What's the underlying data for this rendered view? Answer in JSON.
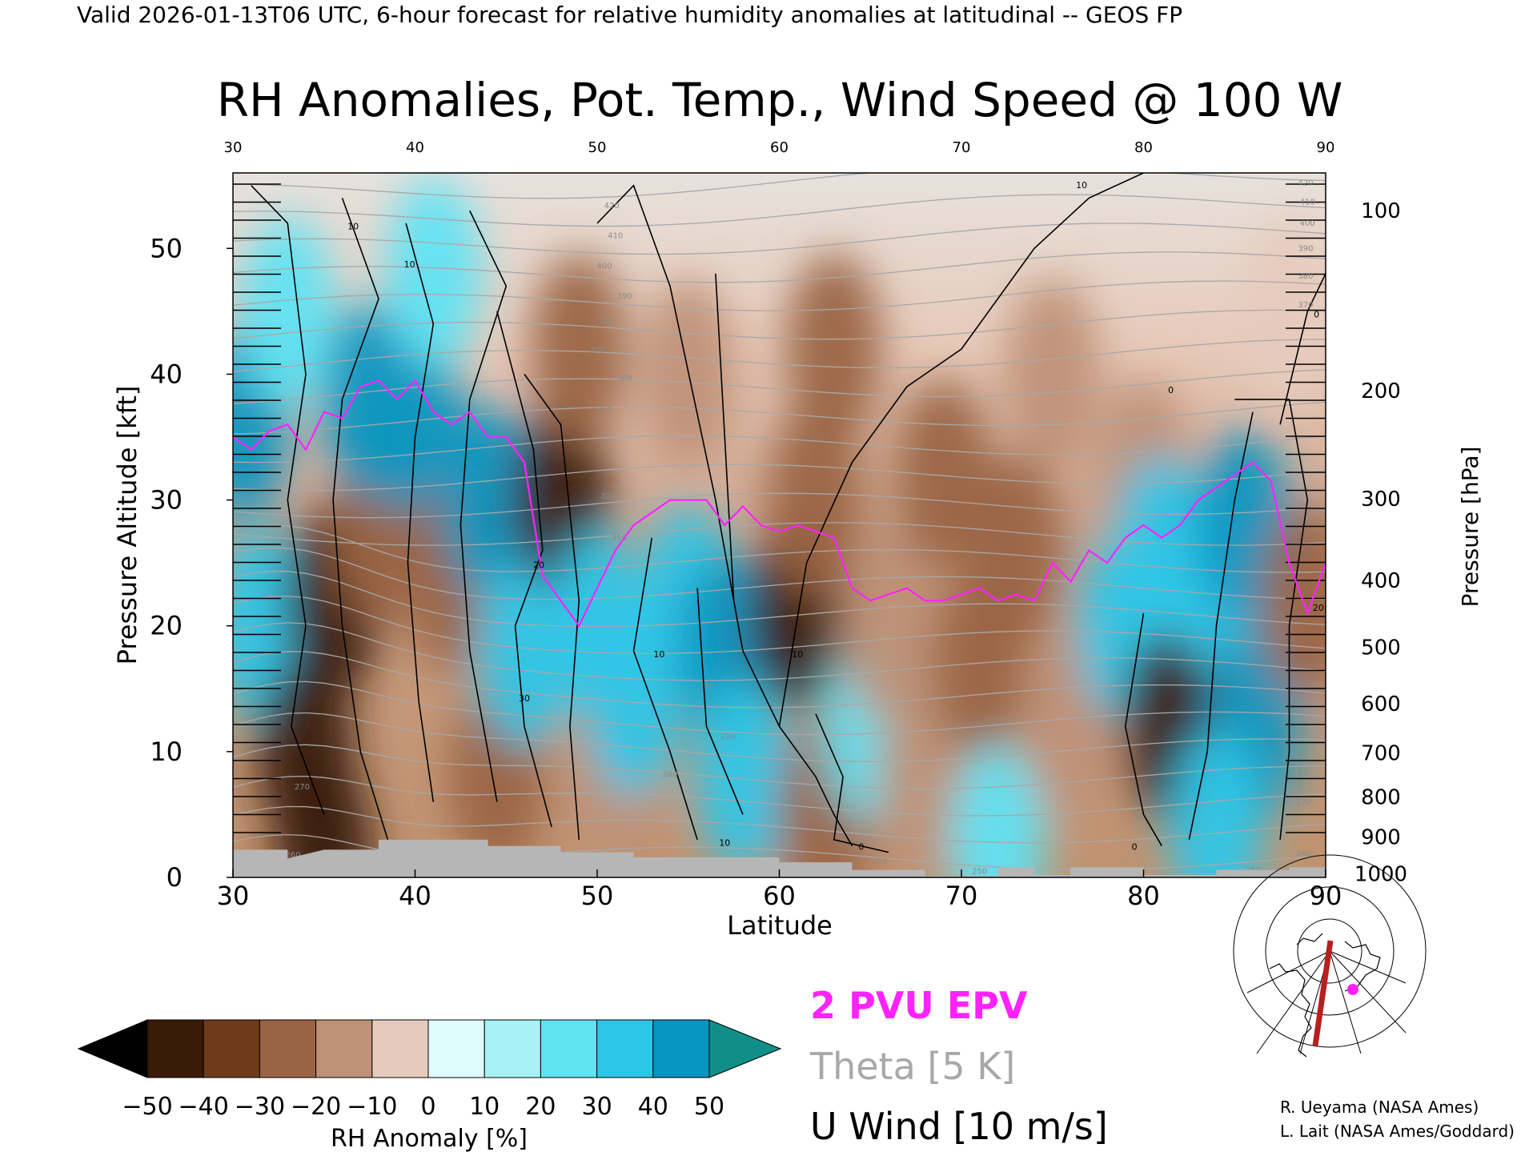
{
  "header": {
    "valid_line": "Valid 2026-01-13T06 UTC, 6-hour forecast for relative humidity anomalies at latitudinal -- GEOS FP",
    "title": "RH Anomalies, Pot. Temp., Wind Speed @ 100 W"
  },
  "legend": {
    "epv_label": "2 PVU EPV",
    "theta_label": "Theta [5 K]",
    "wind_label": "U Wind [10 m/s]",
    "colors": {
      "epv": "#ff22ff",
      "theta": "#a8a8a8",
      "wind": "#000000"
    }
  },
  "colorbar": {
    "label": "RH Anomaly [%]",
    "ticks": [
      "−50",
      "−40",
      "−30",
      "−20",
      "−10",
      "0",
      "10",
      "20",
      "30",
      "40",
      "50"
    ],
    "colors": [
      "#000000",
      "#3a1a08",
      "#6e3a1a",
      "#9a6444",
      "#bf9177",
      "#e6cbbd",
      "#e0fbfb",
      "#a8f2f7",
      "#5fe3f3",
      "#2ec6e8",
      "#0896c0",
      "#118e88"
    ]
  },
  "credits": {
    "line1": "R. Ueyama (NASA Ames)",
    "line2": "L. Lait (NASA Ames/Goddard)"
  },
  "chart_data": {
    "type": "heatmap",
    "xlabel": "Latitude",
    "ylabel": "Pressure Altitude [kft]",
    "y2label": "Pressure [hPa]",
    "xlim": [
      30,
      90
    ],
    "ylim": [
      0,
      56
    ],
    "x_ticks": [
      "30",
      "40",
      "50",
      "60",
      "70",
      "80",
      "90"
    ],
    "y_ticks": [
      "0",
      "10",
      "20",
      "30",
      "40",
      "50"
    ],
    "top_ticks": [
      "30",
      "40",
      "50",
      "60",
      "70",
      "80",
      "90"
    ],
    "pressure_ticks": [
      {
        "label": "100",
        "kft": 53
      },
      {
        "label": "200",
        "kft": 38.7
      },
      {
        "label": "300",
        "kft": 30.1
      },
      {
        "label": "400",
        "kft": 23.6
      },
      {
        "label": "500",
        "kft": 18.3
      },
      {
        "label": "600",
        "kft": 13.8
      },
      {
        "label": "700",
        "kft": 9.9
      },
      {
        "label": "800",
        "kft": 6.4
      },
      {
        "label": "900",
        "kft": 3.2
      },
      {
        "label": "1000",
        "kft": 0.3
      }
    ],
    "rh_anomaly_regions": [
      {
        "lat": 30.5,
        "kft": 36,
        "value": 45
      },
      {
        "lat": 31.5,
        "kft": 20,
        "value": 35
      },
      {
        "lat": 33,
        "kft": 45,
        "value": 20
      },
      {
        "lat": 34,
        "kft": 10,
        "value": -48
      },
      {
        "lat": 35.5,
        "kft": 22,
        "value": -42
      },
      {
        "lat": 35,
        "kft": 2,
        "value": -50
      },
      {
        "lat": 38,
        "kft": 28,
        "value": -28
      },
      {
        "lat": 37.5,
        "kft": 38,
        "value": 46
      },
      {
        "lat": 40,
        "kft": 36,
        "value": 45
      },
      {
        "lat": 42,
        "kft": 24,
        "value": -25
      },
      {
        "lat": 41,
        "kft": 48,
        "value": 25
      },
      {
        "lat": 44,
        "kft": 30,
        "value": 40
      },
      {
        "lat": 44.5,
        "kft": 8,
        "value": -22
      },
      {
        "lat": 46,
        "kft": 18,
        "value": 35
      },
      {
        "lat": 48,
        "kft": 30,
        "value": -45
      },
      {
        "lat": 49,
        "kft": 42,
        "value": -30
      },
      {
        "lat": 50,
        "kft": 20,
        "value": 30
      },
      {
        "lat": 51,
        "kft": 8,
        "value": -15
      },
      {
        "lat": 52,
        "kft": 14,
        "value": 35
      },
      {
        "lat": 55,
        "kft": 40,
        "value": -20
      },
      {
        "lat": 55,
        "kft": 22,
        "value": 30
      },
      {
        "lat": 57,
        "kft": 18,
        "value": 40
      },
      {
        "lat": 58,
        "kft": 8,
        "value": 32
      },
      {
        "lat": 61,
        "kft": 21,
        "value": -48
      },
      {
        "lat": 62,
        "kft": 30,
        "value": -28
      },
      {
        "lat": 62.5,
        "kft": 5,
        "value": -25
      },
      {
        "lat": 63,
        "kft": 42,
        "value": -22
      },
      {
        "lat": 65,
        "kft": 12,
        "value": 25
      },
      {
        "lat": 66,
        "kft": 20,
        "value": -18
      },
      {
        "lat": 68,
        "kft": 8,
        "value": -15
      },
      {
        "lat": 69,
        "kft": 32,
        "value": -30
      },
      {
        "lat": 71,
        "kft": 17,
        "value": -25
      },
      {
        "lat": 72,
        "kft": 3,
        "value": 28
      },
      {
        "lat": 73,
        "kft": 26,
        "value": -22
      },
      {
        "lat": 75,
        "kft": 40,
        "value": -18
      },
      {
        "lat": 76,
        "kft": 12,
        "value": -12
      },
      {
        "lat": 79,
        "kft": 20,
        "value": 35
      },
      {
        "lat": 80,
        "kft": 32,
        "value": -15
      },
      {
        "lat": 81,
        "kft": 26,
        "value": 30
      },
      {
        "lat": 81.5,
        "kft": 12,
        "value": -48
      },
      {
        "lat": 84,
        "kft": 24,
        "value": 30
      },
      {
        "lat": 85.5,
        "kft": 28,
        "value": 46
      },
      {
        "lat": 86,
        "kft": 12,
        "value": 42
      },
      {
        "lat": 84,
        "kft": 4,
        "value": 30
      },
      {
        "lat": 89,
        "kft": 22,
        "value": -22
      },
      {
        "lat": 88,
        "kft": 45,
        "value": -10
      }
    ],
    "epv_2pvu_line": [
      [
        30,
        35
      ],
      [
        31,
        34
      ],
      [
        32,
        35.5
      ],
      [
        33,
        36
      ],
      [
        34,
        34
      ],
      [
        35,
        37
      ],
      [
        36,
        36.5
      ],
      [
        37,
        39
      ],
      [
        38,
        39.5
      ],
      [
        39,
        38
      ],
      [
        40,
        39.5
      ],
      [
        41,
        37
      ],
      [
        42,
        36
      ],
      [
        43,
        37
      ],
      [
        44,
        35
      ],
      [
        45,
        35
      ],
      [
        46,
        33
      ],
      [
        47,
        24
      ],
      [
        48,
        22
      ],
      [
        49,
        20
      ],
      [
        50,
        23
      ],
      [
        51,
        26
      ],
      [
        52,
        28
      ],
      [
        53,
        29
      ],
      [
        54,
        30
      ],
      [
        55,
        30
      ],
      [
        56,
        30
      ],
      [
        57,
        28
      ],
      [
        58,
        29.5
      ],
      [
        59,
        28
      ],
      [
        60,
        27.5
      ],
      [
        61,
        28
      ],
      [
        62,
        27.5
      ],
      [
        63,
        27
      ],
      [
        64,
        23
      ],
      [
        65,
        22
      ],
      [
        66,
        22.5
      ],
      [
        67,
        23
      ],
      [
        68,
        22
      ],
      [
        69,
        22
      ],
      [
        70,
        22.5
      ],
      [
        71,
        23
      ],
      [
        72,
        22
      ],
      [
        73,
        22.5
      ],
      [
        74,
        22
      ],
      [
        75,
        25
      ],
      [
        76,
        23.5
      ],
      [
        77,
        26
      ],
      [
        78,
        25
      ],
      [
        79,
        27
      ],
      [
        80,
        28
      ],
      [
        81,
        27
      ],
      [
        82,
        28
      ],
      [
        83,
        30
      ],
      [
        84,
        31
      ],
      [
        85,
        32
      ],
      [
        86,
        33
      ],
      [
        87,
        31.5
      ],
      [
        88,
        25
      ],
      [
        89,
        21
      ],
      [
        90,
        25
      ]
    ],
    "theta_labels": [
      {
        "text": "420",
        "lat": 50.8,
        "kft": 53.2
      },
      {
        "text": "410",
        "lat": 51.0,
        "kft": 50.8
      },
      {
        "text": "400",
        "lat": 50.4,
        "kft": 48.4
      },
      {
        "text": "390",
        "lat": 51.5,
        "kft": 46.0
      },
      {
        "text": "380",
        "lat": 50.5,
        "kft": 44.0
      },
      {
        "text": "370",
        "lat": 50.0,
        "kft": 41.7
      },
      {
        "text": "360",
        "lat": 51.5,
        "kft": 39.5
      },
      {
        "text": "350",
        "lat": 50.4,
        "kft": 37.0
      },
      {
        "text": "320",
        "lat": 50.6,
        "kft": 30.1
      },
      {
        "text": "310",
        "lat": 51.2,
        "kft": 26.8
      },
      {
        "text": "300",
        "lat": 56.0,
        "kft": 15.0
      },
      {
        "text": "290",
        "lat": 57.2,
        "kft": 11.0
      },
      {
        "text": "280",
        "lat": 54.0,
        "kft": 8.0
      },
      {
        "text": "270",
        "lat": 33.8,
        "kft": 7.0
      },
      {
        "text": "260",
        "lat": 33.3,
        "kft": 1.6
      },
      {
        "text": "250",
        "lat": 65.5,
        "kft": 1.1
      },
      {
        "text": "250",
        "lat": 71.0,
        "kft": 0.3
      },
      {
        "text": "420",
        "lat": 88.9,
        "kft": 55.0
      },
      {
        "text": "410",
        "lat": 89.0,
        "kft": 53.5
      },
      {
        "text": "400",
        "lat": 89.0,
        "kft": 51.8
      },
      {
        "text": "390",
        "lat": 88.9,
        "kft": 49.8
      },
      {
        "text": "380",
        "lat": 88.9,
        "kft": 47.6
      },
      {
        "text": "370",
        "lat": 88.9,
        "kft": 45.3
      },
      {
        "text": "270",
        "lat": 88.8,
        "kft": 5.8
      },
      {
        "text": "260",
        "lat": 88.8,
        "kft": 1.7
      },
      {
        "text": "250",
        "lat": 86.0,
        "kft": 0.4
      }
    ],
    "wind_labels": [
      {
        "text": "10",
        "lat": 36.6,
        "kft": 51.5
      },
      {
        "text": "10",
        "lat": 39.7,
        "kft": 48.5
      },
      {
        "text": "10",
        "lat": 76.6,
        "kft": 54.8
      },
      {
        "text": "20",
        "lat": 46.8,
        "kft": 24.6
      },
      {
        "text": "20",
        "lat": 89.6,
        "kft": 21.2
      },
      {
        "text": "30",
        "lat": 46.0,
        "kft": 14.0
      },
      {
        "text": "10",
        "lat": 53.4,
        "kft": 17.5
      },
      {
        "text": "10",
        "lat": 61.0,
        "kft": 17.5
      },
      {
        "text": "10",
        "lat": 57.0,
        "kft": 2.5
      },
      {
        "text": "0",
        "lat": 81.5,
        "kft": 38.5
      },
      {
        "text": "0",
        "lat": 89.5,
        "kft": 44.5
      },
      {
        "text": "0",
        "lat": 64.5,
        "kft": 2.2
      },
      {
        "text": "0",
        "lat": 79.5,
        "kft": 2.2
      }
    ]
  }
}
